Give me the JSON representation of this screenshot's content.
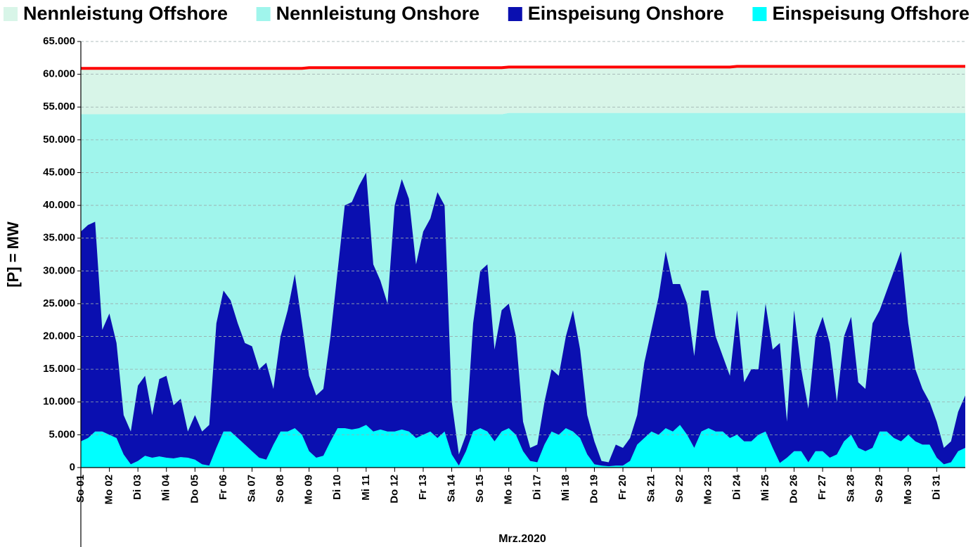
{
  "chart_data": {
    "type": "stacked-area",
    "x_title": "Mrz.2020",
    "y_title": "[P] = MW",
    "xlim": [
      1,
      32
    ],
    "ylim": [
      0,
      65000
    ],
    "grid": true,
    "legend": "top",
    "xticks": [
      {
        "value": 1,
        "label": "So 01"
      },
      {
        "value": 2,
        "label": "Mo 02"
      },
      {
        "value": 3,
        "label": "Di 03"
      },
      {
        "value": 4,
        "label": "Mi 04"
      },
      {
        "value": 5,
        "label": "Do 05"
      },
      {
        "value": 6,
        "label": "Fr 06"
      },
      {
        "value": 7,
        "label": "Sa 07"
      },
      {
        "value": 8,
        "label": "So 08"
      },
      {
        "value": 9,
        "label": "Mo 09"
      },
      {
        "value": 10,
        "label": "Di 10"
      },
      {
        "value": 11,
        "label": "Mi 11"
      },
      {
        "value": 12,
        "label": "Do 12"
      },
      {
        "value": 13,
        "label": "Fr 13"
      },
      {
        "value": 14,
        "label": "Sa 14"
      },
      {
        "value": 15,
        "label": "So 15"
      },
      {
        "value": 16,
        "label": "Mo 16"
      },
      {
        "value": 17,
        "label": "Di 17"
      },
      {
        "value": 18,
        "label": "Mi 18"
      },
      {
        "value": 19,
        "label": "Do 19"
      },
      {
        "value": 20,
        "label": "Fr 20"
      },
      {
        "value": 21,
        "label": "Sa 21"
      },
      {
        "value": 22,
        "label": "So 22"
      },
      {
        "value": 23,
        "label": "Mo 23"
      },
      {
        "value": 24,
        "label": "Di 24"
      },
      {
        "value": 25,
        "label": "Mi 25"
      },
      {
        "value": 26,
        "label": "Do 26"
      },
      {
        "value": 27,
        "label": "Fr 27"
      },
      {
        "value": 28,
        "label": "Sa 28"
      },
      {
        "value": 29,
        "label": "So 29"
      },
      {
        "value": 30,
        "label": "Mo 30"
      },
      {
        "value": 31,
        "label": "Di 31"
      }
    ],
    "yticks": [
      0,
      {
        "value": 5000,
        "label": "5.000"
      },
      {
        "value": 10000,
        "label": "10.000"
      },
      {
        "value": 15000,
        "label": "15.000"
      },
      {
        "value": 20000,
        "label": "20.000"
      },
      {
        "value": 25000,
        "label": "25.000"
      },
      {
        "value": 30000,
        "label": "30.000"
      },
      {
        "value": 35000,
        "label": "35.000"
      },
      {
        "value": 40000,
        "label": "40.000"
      },
      {
        "value": 45000,
        "label": "45.000"
      },
      {
        "value": 50000,
        "label": "50.000"
      },
      {
        "value": 55000,
        "label": "55.000"
      },
      {
        "value": 60000,
        "label": "60.000"
      },
      {
        "value": 65000,
        "label": "65.000"
      }
    ],
    "x": [
      1,
      1.25,
      1.5,
      1.75,
      2,
      2.25,
      2.5,
      2.75,
      3,
      3.25,
      3.5,
      3.75,
      4,
      4.25,
      4.5,
      4.75,
      5,
      5.25,
      5.5,
      5.75,
      6,
      6.25,
      6.5,
      6.75,
      7,
      7.25,
      7.5,
      7.75,
      8,
      8.25,
      8.5,
      8.75,
      9,
      9.25,
      9.5,
      9.75,
      10,
      10.25,
      10.5,
      10.75,
      11,
      11.25,
      11.5,
      11.75,
      12,
      12.25,
      12.5,
      12.75,
      13,
      13.25,
      13.5,
      13.75,
      14,
      14.25,
      14.5,
      14.75,
      15,
      15.25,
      15.5,
      15.75,
      16,
      16.25,
      16.5,
      16.75,
      17,
      17.25,
      17.5,
      17.75,
      18,
      18.25,
      18.5,
      18.75,
      19,
      19.25,
      19.5,
      19.75,
      20,
      20.25,
      20.5,
      20.75,
      21,
      21.25,
      21.5,
      21.75,
      22,
      22.25,
      22.5,
      22.75,
      23,
      23.25,
      23.5,
      23.75,
      24,
      24.25,
      24.5,
      24.75,
      25,
      25.25,
      25.5,
      25.75,
      26,
      26.25,
      26.5,
      26.75,
      27,
      27.25,
      27.5,
      27.75,
      28,
      28.25,
      28.5,
      28.75,
      29,
      29.25,
      29.5,
      29.75,
      30,
      30.25,
      30.5,
      30.75,
      31,
      31.25,
      31.5,
      31.75,
      32
    ],
    "series": [
      {
        "name": "Nennleistung Offshore",
        "color": "#d8f5e8",
        "line_color": "#ff0000",
        "stack": "capacity",
        "values": [
          7000,
          7000,
          7000,
          7000,
          7000,
          7000,
          7000,
          7000,
          7000,
          7000,
          7000,
          7000,
          7000,
          7000,
          7000,
          7000,
          7000,
          7000,
          7000,
          7000,
          7000,
          7000,
          7000,
          7000,
          7000,
          7000,
          7000,
          7000,
          7000,
          7000,
          7000,
          7000,
          7100,
          7100,
          7100,
          7100,
          7100,
          7100,
          7100,
          7100,
          7100,
          7100,
          7100,
          7100,
          7100,
          7100,
          7100,
          7100,
          7100,
          7100,
          7100,
          7100,
          7100,
          7100,
          7100,
          7100,
          7100,
          7100,
          7100,
          7100,
          7000,
          7000,
          7000,
          7000,
          7000,
          7000,
          7000,
          7000,
          7000,
          7000,
          7000,
          7000,
          7000,
          7000,
          7000,
          7000,
          7000,
          7000,
          7000,
          7000,
          7000,
          7000,
          7000,
          7000,
          7000,
          7000,
          7000,
          7000,
          7000,
          7000,
          7000,
          7000,
          7100,
          7100,
          7100,
          7100,
          7100,
          7100,
          7100,
          7100,
          7100,
          7100,
          7100,
          7100,
          7100,
          7100,
          7100,
          7100,
          7100,
          7100,
          7100,
          7100,
          7100,
          7100,
          7100,
          7100,
          7100,
          7100,
          7100,
          7100,
          7100,
          7100,
          7100,
          7100,
          7100
        ]
      },
      {
        "name": "Nennleistung Onshore",
        "color": "#a0f5ec",
        "stack": "capacity",
        "values": [
          53900,
          53900,
          53900,
          53900,
          53900,
          53900,
          53900,
          53900,
          53900,
          53900,
          53900,
          53900,
          53900,
          53900,
          53900,
          53900,
          53900,
          53900,
          53900,
          53900,
          53900,
          53900,
          53900,
          53900,
          53900,
          53900,
          53900,
          53900,
          53900,
          53900,
          53900,
          53900,
          53900,
          53900,
          53900,
          53900,
          53900,
          53900,
          53900,
          53900,
          53900,
          53900,
          53900,
          53900,
          53900,
          53900,
          53900,
          53900,
          53900,
          53900,
          53900,
          53900,
          53900,
          53900,
          53900,
          53900,
          53900,
          53900,
          53900,
          53900,
          54100,
          54100,
          54100,
          54100,
          54100,
          54100,
          54100,
          54100,
          54100,
          54100,
          54100,
          54100,
          54100,
          54100,
          54100,
          54100,
          54100,
          54100,
          54100,
          54100,
          54100,
          54100,
          54100,
          54100,
          54100,
          54100,
          54100,
          54100,
          54100,
          54100,
          54100,
          54100,
          54100,
          54100,
          54100,
          54100,
          54100,
          54100,
          54100,
          54100,
          54100,
          54100,
          54100,
          54100,
          54100,
          54100,
          54100,
          54100,
          54100,
          54100,
          54100,
          54100,
          54100,
          54100,
          54100,
          54100,
          54100,
          54100,
          54100,
          54100,
          54100,
          54100,
          54100,
          54100,
          54100
        ]
      },
      {
        "name": "Einspeisung Onshore",
        "color": "#0a0fb0",
        "stack": "feed",
        "values": [
          32000,
          32500,
          32000,
          15500,
          18500,
          14500,
          6000,
          5000,
          11500,
          12200,
          6500,
          11800,
          12500,
          8100,
          8900,
          4000,
          6800,
          5000,
          6200,
          19000,
          21500,
          20000,
          17500,
          15500,
          16000,
          13500,
          14800,
          8500,
          14500,
          18500,
          23500,
          17000,
          11500,
          9500,
          10200,
          16000,
          24000,
          34000,
          34700,
          37000,
          38500,
          25500,
          22700,
          19500,
          34500,
          38200,
          35500,
          26500,
          31000,
          32500,
          37500,
          34500,
          8000,
          1700,
          2500,
          16500,
          24000,
          25500,
          14000,
          18500,
          19000,
          15000,
          4500,
          2000,
          2700,
          6500,
          9500,
          9000,
          14000,
          18500,
          13500,
          6000,
          3500,
          700,
          600,
          3200,
          2700,
          3500,
          4500,
          11500,
          15500,
          21000,
          27000,
          22500,
          21500,
          20000,
          14000,
          21500,
          21000,
          14500,
          11500,
          9500,
          19000,
          9000,
          11000,
          10000,
          19500,
          15000,
          18300,
          5500,
          21500,
          12500,
          8200,
          17500,
          20500,
          17500,
          8000,
          16000,
          18000,
          10000,
          9500,
          19000,
          18500,
          21500,
          25500,
          29000,
          17000,
          11000,
          8500,
          6500,
          5500,
          2500,
          3200,
          6000,
          8000
        ]
      },
      {
        "name": "Einspeisung Offshore",
        "color": "#00ffff",
        "stack": "feed",
        "values": [
          4000,
          4500,
          5500,
          5500,
          5000,
          4500,
          2000,
          500,
          1000,
          1800,
          1500,
          1700,
          1500,
          1400,
          1600,
          1500,
          1200,
          500,
          300,
          3000,
          5500,
          5500,
          4500,
          3500,
          2500,
          1500,
          1200,
          3500,
          5500,
          5500,
          6000,
          5000,
          2500,
          1500,
          1800,
          4000,
          6000,
          6000,
          5800,
          6000,
          6500,
          5500,
          5800,
          5500,
          5500,
          5800,
          5500,
          4500,
          5000,
          5500,
          4500,
          5500,
          2000,
          300,
          2500,
          5500,
          6000,
          5500,
          4000,
          5500,
          6000,
          5000,
          2500,
          1000,
          800,
          3500,
          5500,
          5000,
          6000,
          5500,
          4500,
          2000,
          500,
          300,
          200,
          300,
          300,
          1000,
          3500,
          4500,
          5500,
          5000,
          6000,
          5500,
          6500,
          5000,
          3000,
          5500,
          6000,
          5500,
          5500,
          4500,
          5000,
          4000,
          4000,
          5000,
          5500,
          3000,
          700,
          1500,
          2500,
          2500,
          800,
          2500,
          2500,
          1500,
          2000,
          4000,
          5000,
          3000,
          2500,
          3000,
          5500,
          5500,
          4500,
          4000,
          5000,
          4000,
          3500,
          3500,
          1500,
          500,
          800,
          2500,
          3000
        ]
      }
    ]
  }
}
